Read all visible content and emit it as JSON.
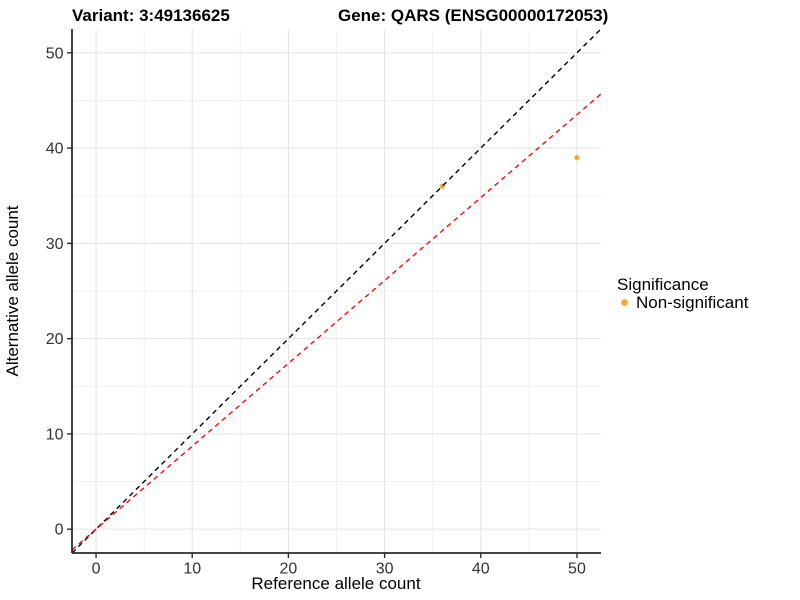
{
  "chart": {
    "title_left": "Variant: 3:49136625",
    "title_right": "Gene: QARS (ENSG00000172053)"
  },
  "chart_data": {
    "type": "scatter",
    "title": "Variant: 3:49136625   Gene: QARS (ENSG00000172053)",
    "xlabel": "Reference allele count",
    "ylabel": "Alternative allele count",
    "xlim": [
      -2.5,
      52.5
    ],
    "ylim": [
      -2.5,
      52.5
    ],
    "x_major_ticks": [
      0,
      10,
      20,
      30,
      40,
      50
    ],
    "y_major_ticks": [
      0,
      10,
      20,
      30,
      40,
      50
    ],
    "x_minor_ticks": [
      5,
      15,
      25,
      35,
      45
    ],
    "y_minor_ticks": [
      5,
      15,
      25,
      35,
      45
    ],
    "grid": "major+minor",
    "series": [
      {
        "name": "Non-significant",
        "color": "#FAA43A",
        "points": [
          {
            "x": 36,
            "y": 36
          },
          {
            "x": 50,
            "y": 39
          }
        ]
      }
    ],
    "reference_lines": [
      {
        "name": "identity",
        "slope": 1,
        "intercept": 0,
        "color": "#000000",
        "linestyle": "dashed"
      },
      {
        "name": "expected-ratio",
        "slope": 0.87,
        "intercept": 0,
        "color": "#FF0000",
        "linestyle": "dashed"
      }
    ],
    "legend": {
      "title": "Significance",
      "position": "right",
      "items": [
        {
          "label": "Non-significant",
          "color": "#FAA43A",
          "marker": "circle"
        }
      ]
    }
  },
  "style_colors": {
    "grid_major": "#E3E3E3",
    "grid_minor": "#F1F1F1",
    "axis_line": "#2B2B2B",
    "tick_label": "#333333",
    "point_orange": "#FAA43A",
    "line_black": "#000000",
    "line_red": "#FF0000"
  }
}
